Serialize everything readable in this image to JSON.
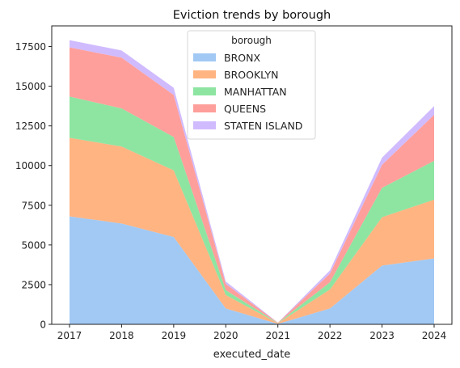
{
  "chart_data": {
    "type": "area",
    "stacked": true,
    "title": "Eviction trends by borough",
    "xlabel": "executed_date",
    "ylabel": "",
    "x": [
      "2017",
      "2018",
      "2019",
      "2020",
      "2021",
      "2022",
      "2023",
      "2024"
    ],
    "ylim": [
      0,
      18800
    ],
    "yticks": [
      0,
      2500,
      5000,
      7500,
      10000,
      12500,
      15000,
      17500
    ],
    "ytick_labels": [
      "0",
      "2500",
      "5000",
      "7500",
      "10000",
      "12500",
      "15000",
      "17500"
    ],
    "grid": false,
    "legend": {
      "title": "borough",
      "position": "top-center"
    },
    "series": [
      {
        "name": "BRONX",
        "color": "#a1c9f4",
        "values": [
          6800,
          6350,
          5500,
          1000,
          30,
          1000,
          3700,
          4150
        ]
      },
      {
        "name": "BROOKLYN",
        "color": "#ffb482",
        "values": [
          4950,
          4850,
          4200,
          850,
          40,
          1200,
          3050,
          3700
        ]
      },
      {
        "name": "MANHATTAN",
        "color": "#8de5a1",
        "values": [
          2600,
          2400,
          2100,
          300,
          15,
          450,
          1850,
          2450
        ]
      },
      {
        "name": "QUEENS",
        "color": "#ff9f9b",
        "values": [
          3100,
          3200,
          2650,
          400,
          15,
          550,
          1450,
          2900
        ]
      },
      {
        "name": "STATEN ISLAND",
        "color": "#d0bbff",
        "values": [
          450,
          450,
          450,
          150,
          10,
          200,
          450,
          550
        ]
      }
    ]
  }
}
